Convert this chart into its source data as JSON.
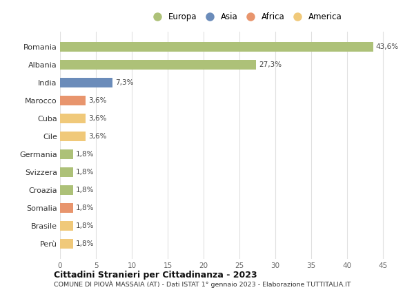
{
  "countries": [
    "Romania",
    "Albania",
    "India",
    "Marocco",
    "Cuba",
    "Cile",
    "Germania",
    "Svizzera",
    "Croazia",
    "Somalia",
    "Brasile",
    "Perù"
  ],
  "values": [
    43.6,
    27.3,
    7.3,
    3.6,
    3.6,
    3.6,
    1.8,
    1.8,
    1.8,
    1.8,
    1.8,
    1.8
  ],
  "labels": [
    "43,6%",
    "27,3%",
    "7,3%",
    "3,6%",
    "3,6%",
    "3,6%",
    "1,8%",
    "1,8%",
    "1,8%",
    "1,8%",
    "1,8%",
    "1,8%"
  ],
  "continent": [
    "Europa",
    "Europa",
    "Asia",
    "Africa",
    "America",
    "America",
    "Europa",
    "Europa",
    "Europa",
    "Africa",
    "America",
    "America"
  ],
  "colors": {
    "Europa": "#adc178",
    "Asia": "#6b8cba",
    "Africa": "#e8956d",
    "America": "#f0c97a"
  },
  "xlim": [
    0,
    47
  ],
  "xticks": [
    0,
    5,
    10,
    15,
    20,
    25,
    30,
    35,
    40,
    45
  ],
  "title": "Cittadini Stranieri per Cittadinanza - 2023",
  "subtitle": "COMUNE DI PIOVÀ MASSAIA (AT) - Dati ISTAT 1° gennaio 2023 - Elaborazione TUTTITALIA.IT",
  "background_color": "#ffffff",
  "grid_color": "#e0e0e0"
}
